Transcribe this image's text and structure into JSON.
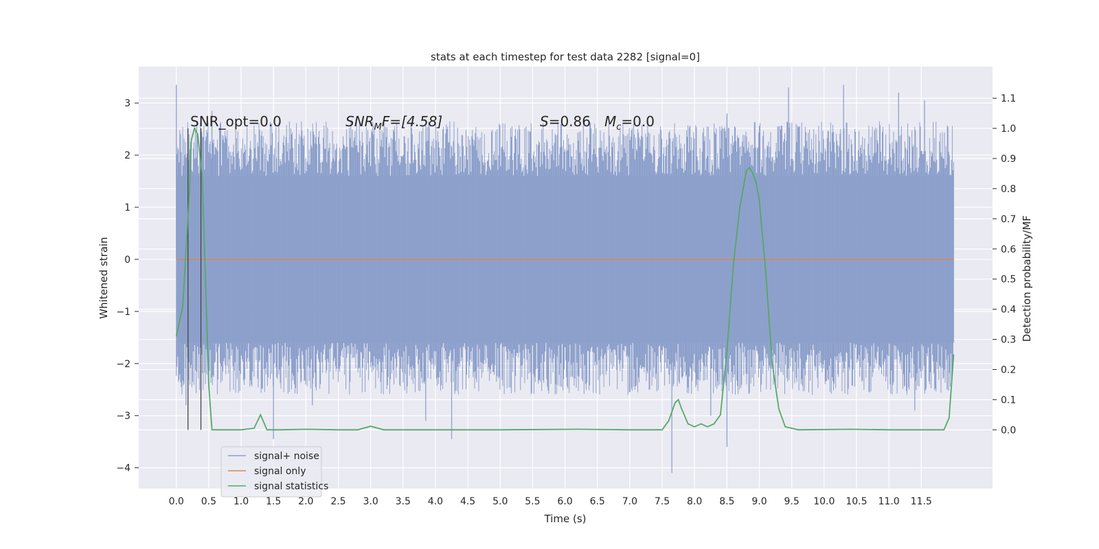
{
  "chart_data": {
    "type": "line",
    "title": "stats at each timestep for test data 2282 [signal=0]",
    "xlabel": "Time (s)",
    "ylabel": "Whitened strain",
    "ylabel_right": "Detection probability/MF",
    "x_ticks": [
      "0.0",
      "0.5",
      "1.0",
      "1.5",
      "2.0",
      "2.5",
      "3.0",
      "3.5",
      "4.0",
      "4.5",
      "5.0",
      "5.5",
      "6.0",
      "6.5",
      "7.0",
      "7.5",
      "8.0",
      "8.5",
      "9.0",
      "9.5",
      "10.0",
      "10.5",
      "11.0",
      "11.5"
    ],
    "y_ticks_left": [
      "3",
      "2",
      "1",
      "0",
      "−1",
      "−2",
      "−3",
      "−4"
    ],
    "y_ticks_right": [
      "1.1",
      "1.0",
      "0.9",
      "0.8",
      "0.7",
      "0.6",
      "0.5",
      "0.4",
      "0.3",
      "0.2",
      "0.1",
      "0.0"
    ],
    "xlim": [
      -0.58,
      12.6
    ],
    "ylim_left": [
      -4.4,
      3.7
    ],
    "ylim_right": [
      -0.195,
      1.205
    ],
    "grid": true,
    "annotations": {
      "snr_opt": "SNR_opt=0.0",
      "snr_mf_sym": "SNR",
      "snr_mf_sub": "M",
      "snr_mf_rest": "F=[4.58]",
      "s_sym": "S",
      "s_val": "=0.86",
      "mc_sym": "M",
      "mc_sub": "c",
      "mc_val": "=0.0"
    },
    "vertical_markers_x": [
      0.18,
      0.38
    ],
    "legend": {
      "position": "lower-left",
      "entries": [
        "signal+ noise",
        "signal only",
        "signal statistics"
      ]
    },
    "colors": {
      "signal_noise": "#8da0cb",
      "signal_only": "#dd8452",
      "signal_statistics": "#55a868",
      "background": "#eaeaf2",
      "grid": "#ffffff"
    },
    "series": [
      {
        "name": "signal+ noise",
        "axis": "left",
        "x_range": [
          0.0,
          12.0
        ],
        "band_lower": -1.6,
        "band_upper": 1.6,
        "spikes": [
          [
            0.0,
            3.35
          ],
          [
            0.55,
            2.85
          ],
          [
            2.95,
            2.2
          ],
          [
            8.5,
            2.8
          ],
          [
            9.45,
            3.3
          ],
          [
            10.3,
            3.35
          ],
          [
            11.15,
            3.2
          ],
          [
            11.55,
            3.05
          ],
          [
            0.15,
            -2.8
          ],
          [
            1.5,
            -3.45
          ],
          [
            2.1,
            -2.8
          ],
          [
            3.85,
            -3.1
          ],
          [
            4.25,
            -3.45
          ],
          [
            7.65,
            -4.1
          ],
          [
            8.25,
            -3.0
          ],
          [
            8.5,
            -3.6
          ],
          [
            11.4,
            -2.9
          ],
          [
            11.9,
            -2.5
          ]
        ]
      },
      {
        "name": "signal only",
        "axis": "left",
        "x": [
          0.0,
          12.0
        ],
        "y": [
          0.0,
          0.0
        ]
      },
      {
        "name": "signal statistics",
        "axis": "right",
        "x": [
          0.0,
          0.1,
          0.2,
          0.23,
          0.28,
          0.33,
          0.4,
          0.45,
          0.5,
          0.55,
          0.62,
          0.8,
          1.0,
          1.2,
          1.3,
          1.4,
          1.6,
          2.0,
          2.5,
          2.8,
          3.0,
          3.2,
          4.0,
          4.3,
          5.0,
          6.2,
          7.0,
          7.5,
          7.6,
          7.7,
          7.75,
          7.8,
          7.9,
          8.0,
          8.1,
          8.2,
          8.3,
          8.4,
          8.5,
          8.6,
          8.7,
          8.8,
          8.85,
          8.9,
          8.95,
          9.0,
          9.1,
          9.2,
          9.3,
          9.4,
          9.6,
          10.4,
          11.0,
          11.5,
          11.85,
          11.93,
          12.0
        ],
        "y": [
          0.31,
          0.41,
          0.78,
          0.96,
          1.0,
          0.98,
          0.84,
          0.5,
          0.15,
          0.0,
          0.0,
          0.0,
          0.0,
          0.005,
          0.05,
          0.0,
          0.0,
          0.002,
          0.0,
          0.0,
          0.012,
          0.0,
          0.0,
          0.0,
          0.0,
          0.002,
          0.0,
          0.0,
          0.03,
          0.09,
          0.1,
          0.07,
          0.02,
          0.01,
          0.02,
          0.01,
          0.02,
          0.05,
          0.26,
          0.55,
          0.74,
          0.86,
          0.87,
          0.85,
          0.82,
          0.76,
          0.52,
          0.22,
          0.07,
          0.01,
          0.0,
          0.002,
          0.0,
          0.0,
          0.0,
          0.04,
          0.25
        ]
      }
    ]
  }
}
